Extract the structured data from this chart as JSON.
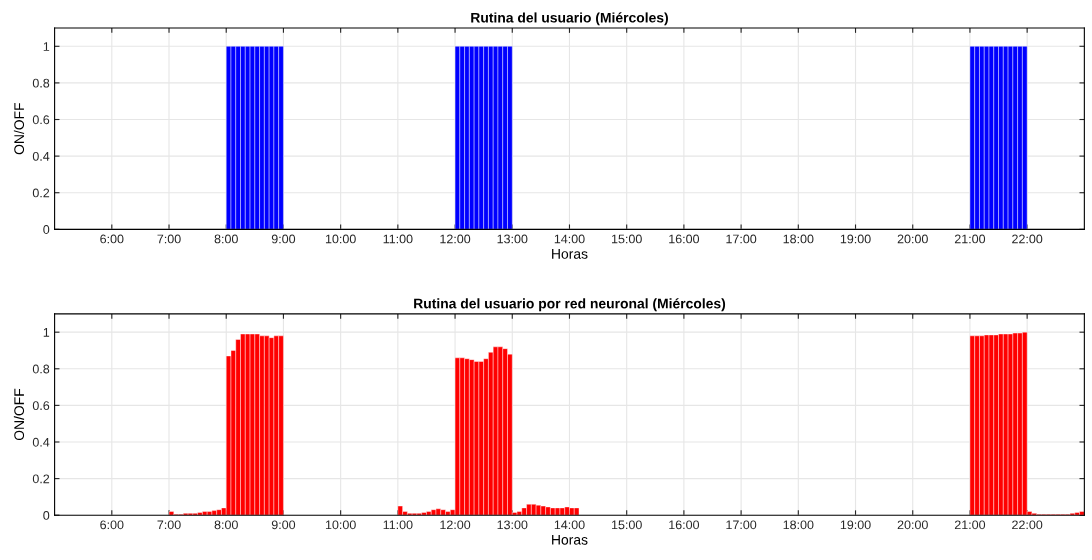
{
  "chart_data": [
    {
      "type": "bar",
      "title": "Rutina del usuario (Miércoles)",
      "xlabel": "Horas",
      "ylabel": "ON/OFF",
      "xlim": [
        5,
        23
      ],
      "ylim": [
        0,
        1.1
      ],
      "xticks": [
        {
          "value": 6,
          "label": "6:00"
        },
        {
          "value": 7,
          "label": "7:00"
        },
        {
          "value": 8,
          "label": "8:00"
        },
        {
          "value": 9,
          "label": "9:00"
        },
        {
          "value": 10,
          "label": "10:00"
        },
        {
          "value": 11,
          "label": "11:00"
        },
        {
          "value": 12,
          "label": "12:00"
        },
        {
          "value": 13,
          "label": "13:00"
        },
        {
          "value": 14,
          "label": "14:00"
        },
        {
          "value": 15,
          "label": "15:00"
        },
        {
          "value": 16,
          "label": "16:00"
        },
        {
          "value": 17,
          "label": "17:00"
        },
        {
          "value": 18,
          "label": "18:00"
        },
        {
          "value": 19,
          "label": "19:00"
        },
        {
          "value": 20,
          "label": "20:00"
        },
        {
          "value": 21,
          "label": "21:00"
        },
        {
          "value": 22,
          "label": "22:00"
        }
      ],
      "yticks": [
        0,
        0.2,
        0.4,
        0.6,
        0.8,
        1
      ],
      "grid": true,
      "series": [
        {
          "color": "#0000ff",
          "x": [
            8,
            8.0833,
            8.1667,
            8.25,
            8.3333,
            8.4167,
            8.5,
            8.5833,
            8.6667,
            8.75,
            8.8333,
            8.9167,
            12,
            12.0833,
            12.1667,
            12.25,
            12.3333,
            12.4167,
            12.5,
            12.5833,
            12.6667,
            12.75,
            12.8333,
            12.9167,
            21,
            21.0833,
            21.1667,
            21.25,
            21.3333,
            21.4167,
            21.5,
            21.5833,
            21.6667,
            21.75,
            21.8333,
            21.9167
          ],
          "values": [
            1,
            1,
            1,
            1,
            1,
            1,
            1,
            1,
            1,
            1,
            1,
            1,
            1,
            1,
            1,
            1,
            1,
            1,
            1,
            1,
            1,
            1,
            1,
            1,
            1,
            1,
            1,
            1,
            1,
            1,
            1,
            1,
            1,
            1,
            1,
            1
          ]
        }
      ]
    },
    {
      "type": "bar",
      "title": "Rutina del usuario por red neuronal (Miércoles)",
      "xlabel": "Horas",
      "ylabel": "ON/OFF",
      "xlim": [
        5,
        23
      ],
      "ylim": [
        0,
        1.1
      ],
      "xticks": [
        {
          "value": 6,
          "label": "6:00"
        },
        {
          "value": 7,
          "label": "7:00"
        },
        {
          "value": 8,
          "label": "8:00"
        },
        {
          "value": 9,
          "label": "9:00"
        },
        {
          "value": 10,
          "label": "10:00"
        },
        {
          "value": 11,
          "label": "11:00"
        },
        {
          "value": 12,
          "label": "12:00"
        },
        {
          "value": 13,
          "label": "13:00"
        },
        {
          "value": 14,
          "label": "14:00"
        },
        {
          "value": 15,
          "label": "15:00"
        },
        {
          "value": 16,
          "label": "16:00"
        },
        {
          "value": 17,
          "label": "17:00"
        },
        {
          "value": 18,
          "label": "18:00"
        },
        {
          "value": 19,
          "label": "19:00"
        },
        {
          "value": 20,
          "label": "20:00"
        },
        {
          "value": 21,
          "label": "21:00"
        },
        {
          "value": 22,
          "label": "22:00"
        }
      ],
      "yticks": [
        0,
        0.2,
        0.4,
        0.6,
        0.8,
        1
      ],
      "grid": true,
      "series": [
        {
          "color": "#ff0000",
          "x": [
            7,
            7.0833,
            7.1667,
            7.25,
            7.3333,
            7.4167,
            7.5,
            7.5833,
            7.6667,
            7.75,
            7.8333,
            7.9167,
            8,
            8.0833,
            8.1667,
            8.25,
            8.3333,
            8.4167,
            8.5,
            8.5833,
            8.6667,
            8.75,
            8.8333,
            8.9167,
            11,
            11.0833,
            11.1667,
            11.25,
            11.3333,
            11.4167,
            11.5,
            11.5833,
            11.6667,
            11.75,
            11.8333,
            11.9167,
            12,
            12.0833,
            12.1667,
            12.25,
            12.3333,
            12.4167,
            12.5,
            12.5833,
            12.6667,
            12.75,
            12.8333,
            12.9167,
            13,
            13.0833,
            13.1667,
            13.25,
            13.3333,
            13.4167,
            13.5,
            13.5833,
            13.6667,
            13.75,
            13.8333,
            13.9167,
            14,
            14.0833,
            21,
            21.0833,
            21.1667,
            21.25,
            21.3333,
            21.4167,
            21.5,
            21.5833,
            21.6667,
            21.75,
            21.8333,
            21.9167,
            22,
            22.0833,
            22.1667,
            22.25,
            22.3333,
            22.4167,
            22.5,
            22.5833,
            22.6667,
            22.75,
            22.8333,
            22.9167
          ],
          "values": [
            0.02,
            0.005,
            0.005,
            0.01,
            0.01,
            0.01,
            0.015,
            0.02,
            0.02,
            0.025,
            0.03,
            0.04,
            0.87,
            0.9,
            0.96,
            0.99,
            0.99,
            0.99,
            0.99,
            0.98,
            0.98,
            0.97,
            0.98,
            0.98,
            0.05,
            0.02,
            0.01,
            0.01,
            0.01,
            0.015,
            0.02,
            0.03,
            0.035,
            0.03,
            0.02,
            0.03,
            0.86,
            0.86,
            0.855,
            0.85,
            0.84,
            0.84,
            0.855,
            0.89,
            0.92,
            0.92,
            0.91,
            0.88,
            0.015,
            0.02,
            0.04,
            0.06,
            0.06,
            0.055,
            0.05,
            0.045,
            0.04,
            0.04,
            0.04,
            0.045,
            0.04,
            0.04,
            0.98,
            0.98,
            0.98,
            0.985,
            0.985,
            0.985,
            0.99,
            0.99,
            0.99,
            0.995,
            0.995,
            1,
            0.02,
            0.01,
            0.005,
            0.005,
            0.005,
            0.005,
            0.005,
            0.005,
            0.005,
            0.01,
            0.015,
            0.02
          ]
        }
      ]
    }
  ]
}
